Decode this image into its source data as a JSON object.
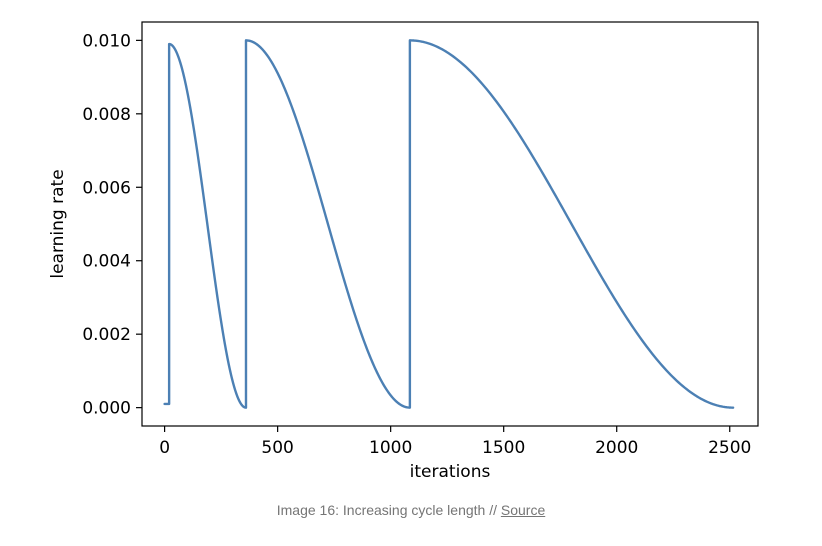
{
  "chart_data": {
    "type": "line",
    "title": "",
    "xlabel": "iterations",
    "ylabel": "learning rate",
    "xlim": [
      -100,
      2625
    ],
    "ylim": [
      -0.0005,
      0.0105
    ],
    "xticks": [
      0,
      500,
      1000,
      1500,
      2000,
      2500
    ],
    "xtick_labels": [
      "0",
      "500",
      "1000",
      "1500",
      "2000",
      "2500"
    ],
    "yticks": [
      0.0,
      0.002,
      0.004,
      0.006,
      0.008,
      0.01
    ],
    "ytick_labels": [
      "0.000",
      "0.002",
      "0.004",
      "0.006",
      "0.008",
      "0.010"
    ],
    "grid": false,
    "series": [
      {
        "name": "learning rate",
        "color": "#4c80b4",
        "warmup": {
          "x": [
            0,
            20
          ],
          "y": 0.0001
        },
        "cycles": [
          {
            "start": 20,
            "end": 360,
            "max_lr": 0.0099,
            "min_lr": 0.0
          },
          {
            "start": 360,
            "end": 1085,
            "max_lr": 0.01,
            "min_lr": 0.0
          },
          {
            "start": 1085,
            "end": 2515,
            "max_lr": 0.01,
            "min_lr": 0.0
          }
        ]
      }
    ]
  },
  "caption": {
    "text": "Image 16: Increasing cycle length // ",
    "link_text": "Source"
  }
}
